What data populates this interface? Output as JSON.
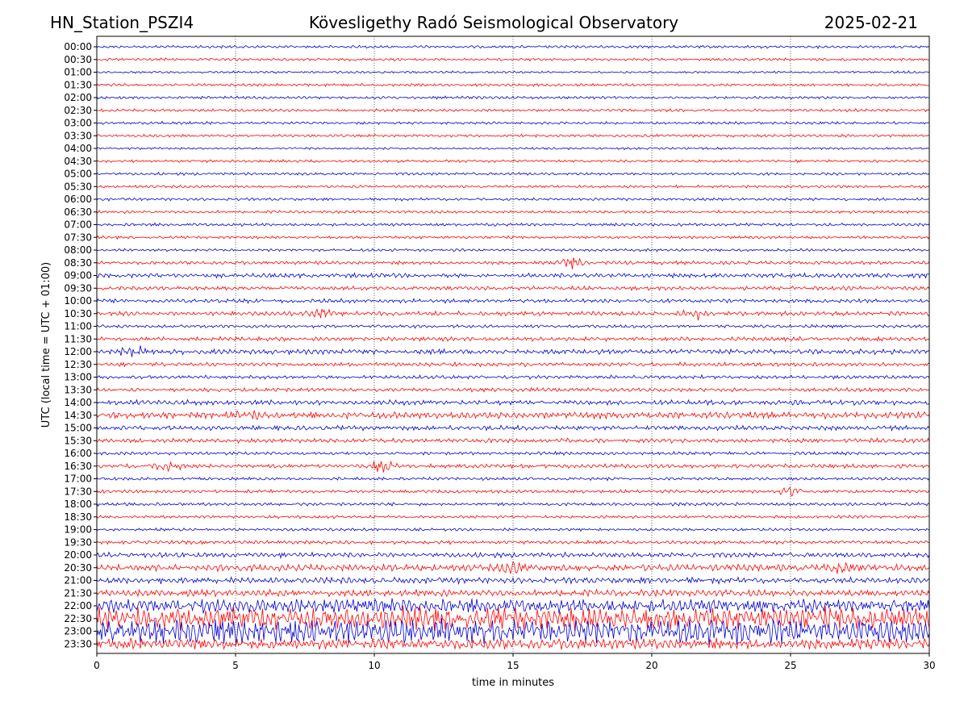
{
  "header": {
    "station": "HN_Station_PSZI4",
    "observatory": "Kövesligethy Radó Seismological Observatory",
    "date": "2025-02-21"
  },
  "chart_data": {
    "type": "line",
    "subtype": "helicorder",
    "xlabel": "time in minutes",
    "ylabel": "UTC (local time = UTC + 01:00)",
    "xlim": [
      0,
      30
    ],
    "x_ticks": [
      "0",
      "5",
      "10",
      "15",
      "20",
      "25",
      "30"
    ],
    "x_grid": "dotted vertical lines at every 5 minutes",
    "row_labels": [
      "00:00",
      "00:30",
      "01:00",
      "01:30",
      "02:00",
      "02:30",
      "03:00",
      "03:30",
      "04:00",
      "04:30",
      "05:00",
      "05:30",
      "06:00",
      "06:30",
      "07:00",
      "07:30",
      "08:00",
      "08:30",
      "09:00",
      "09:30",
      "10:00",
      "10:30",
      "11:00",
      "11:30",
      "12:00",
      "12:30",
      "13:00",
      "13:30",
      "14:00",
      "14:30",
      "15:00",
      "15:30",
      "16:00",
      "16:30",
      "17:00",
      "17:30",
      "18:00",
      "18:30",
      "19:00",
      "19:30",
      "20:00",
      "20:30",
      "21:00",
      "21:30",
      "22:00",
      "22:30",
      "23:00",
      "23:30"
    ],
    "trace_colors": [
      "#0000cc",
      "#ff0000"
    ],
    "trace_color_rule": "alternating per row, starting with blue at 00:00",
    "relative_amplitude": [
      1,
      1,
      0.8,
      1,
      1,
      1,
      1,
      1,
      0.8,
      1,
      1,
      1,
      1,
      1,
      1.1,
      1,
      1,
      1.3,
      1.6,
      1.4,
      1.4,
      1.6,
      1.2,
      1.5,
      1.8,
      1.5,
      1.3,
      1.4,
      1.8,
      2.5,
      1.7,
      1.6,
      1.2,
      1.5,
      1.1,
      1.2,
      1.2,
      1.1,
      1,
      1.3,
      1.8,
      2.5,
      2.2,
      2.4,
      5,
      8,
      9,
      4
    ],
    "events": [
      {
        "row": "08:30",
        "minute": 17.1
      },
      {
        "row": "10:30",
        "minute": 8.0
      },
      {
        "row": "10:30",
        "minute": 21.6
      },
      {
        "row": "12:00",
        "minute": 1.3
      },
      {
        "row": "14:30",
        "minute": 5.5
      },
      {
        "row": "16:30",
        "minute": 2.6
      },
      {
        "row": "16:30",
        "minute": 10.3
      },
      {
        "row": "17:30",
        "minute": 25.0
      },
      {
        "row": "20:30",
        "minute": 15.0
      },
      {
        "row": "20:30",
        "minute": 26.8
      }
    ]
  }
}
